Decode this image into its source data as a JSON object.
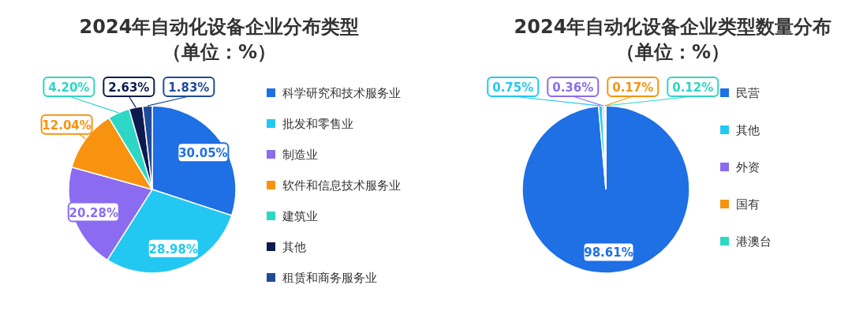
{
  "chart_data": [
    {
      "type": "pie",
      "title": "2024年自动化设备企业分布类型",
      "subtitle": "（单位：%）",
      "legend": "right",
      "categories": [
        "科学研究和技术服务业",
        "批发和零售业",
        "制造业",
        "软件和信息技术服务业",
        "建筑业",
        "其他",
        "租赁和商务服务业"
      ],
      "values": [
        30.05,
        28.98,
        20.28,
        12.04,
        4.2,
        2.63,
        1.83
      ],
      "value_labels": [
        "30.05%",
        "28.98%",
        "20.28%",
        "12.04%",
        "4.20%",
        "2.63%",
        "1.83%"
      ],
      "colors": [
        "#1f6fe5",
        "#22c8f2",
        "#8b6cf0",
        "#f7930e",
        "#2ed6c5",
        "#0c1a4f",
        "#1f4b9c"
      ]
    },
    {
      "type": "pie",
      "title": "2024年自动化设备企业类型数量分布",
      "subtitle": "（单位：%）",
      "legend": "right",
      "categories": [
        "民营",
        "其他",
        "外资",
        "国有",
        "港澳台"
      ],
      "values": [
        98.61,
        0.75,
        0.36,
        0.17,
        0.12
      ],
      "value_labels": [
        "98.61%",
        "0.75%",
        "0.36%",
        "0.17%",
        "0.12%"
      ],
      "colors": [
        "#1f6fe5",
        "#22c8f2",
        "#8b6cf0",
        "#f7930e",
        "#2ed6c5"
      ]
    }
  ]
}
